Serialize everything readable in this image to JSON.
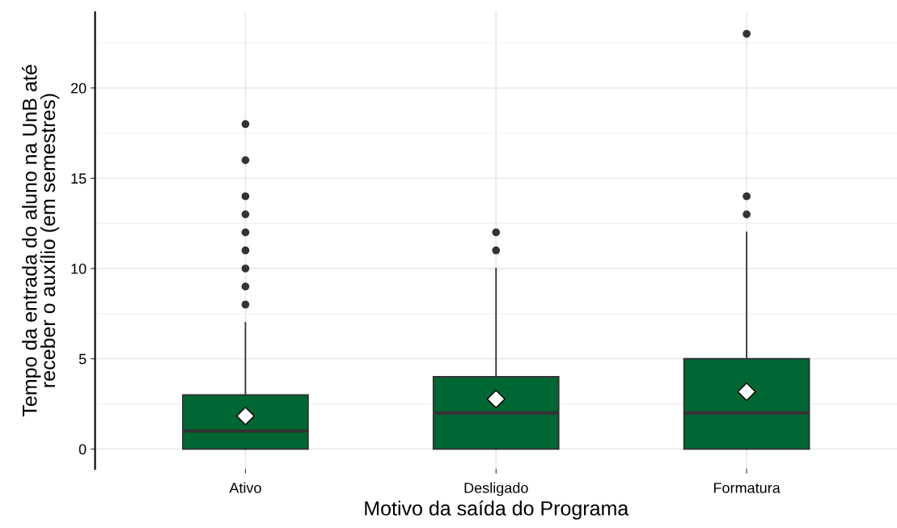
{
  "chart_data": {
    "type": "box",
    "xlabel": "Motivo da saída do Programa",
    "ylabel": "Tempo da entrada do aluno na UnB até\nreceber o auxílio (em semestres)",
    "categories": [
      "Ativo",
      "Desligado",
      "Formatura"
    ],
    "color": "#006633",
    "grid": true,
    "ylim": [
      -1.1,
      24.2
    ],
    "yticks": [
      0,
      5,
      10,
      15,
      20
    ],
    "marker": "diamond",
    "boxes": [
      {
        "low": 0,
        "q1": 0,
        "median": 1,
        "q3": 3,
        "high": 7,
        "mean": 1.83,
        "outliers": [
          8,
          9,
          10,
          11,
          12,
          13,
          14,
          16,
          18
        ]
      },
      {
        "low": 0,
        "q1": 0,
        "median": 2,
        "q3": 4,
        "high": 10,
        "mean": 2.77,
        "outliers": [
          11,
          12
        ]
      },
      {
        "low": 0,
        "q1": 0,
        "median": 2,
        "q3": 5,
        "high": 12,
        "mean": 3.17,
        "outliers": [
          13,
          14,
          23
        ]
      }
    ]
  }
}
